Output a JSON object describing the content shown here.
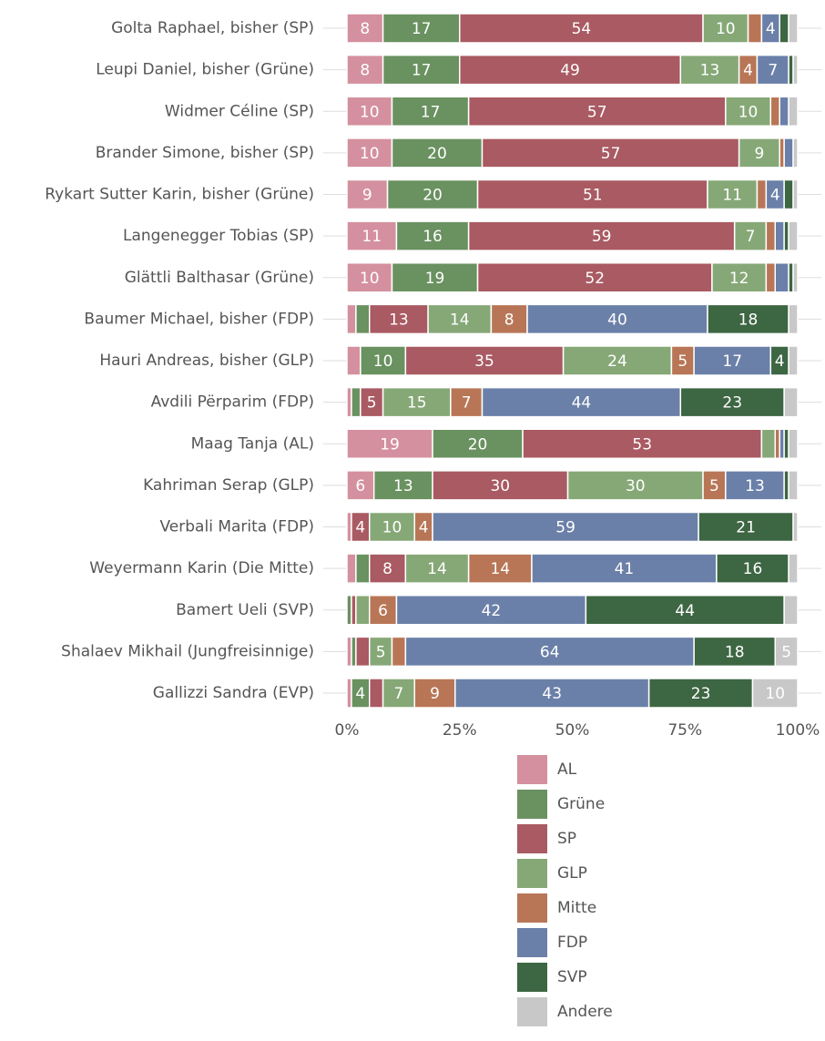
{
  "chart_data": {
    "type": "stacked-bar",
    "categories": [
      "Golta Raphael, bisher (SP)",
      "Leupi Daniel, bisher (Grüne)",
      "Widmer Céline (SP)",
      "Brander Simone, bisher (SP)",
      "Rykart Sutter Karin, bisher (Grüne)",
      "Langenegger Tobias (SP)",
      "Glättli Balthasar (Grüne)",
      "Baumer Michael, bisher (FDP)",
      "Hauri Andreas, bisher (GLP)",
      "Avdili Përparim (FDP)",
      "Maag Tanja (AL)",
      "Kahriman Serap (GLP)",
      "Verbali Marita (FDP)",
      "Weyermann Karin (Die Mitte)",
      "Bamert Ueli (SVP)",
      "Shalaev Mikhail (Jungfreisinnige)",
      "Gallizzi Sandra (EVP)"
    ],
    "series": [
      {
        "name": "AL",
        "color": "#d4909e",
        "values": [
          8,
          8,
          10,
          10,
          9,
          11,
          10,
          2,
          3,
          1,
          19,
          6,
          1,
          2,
          0,
          1,
          1
        ]
      },
      {
        "name": "Grüne",
        "color": "#6a9160",
        "values": [
          17,
          17,
          17,
          20,
          20,
          16,
          19,
          3,
          10,
          2,
          20,
          13,
          0,
          3,
          1,
          1,
          4
        ]
      },
      {
        "name": "SP",
        "color": "#a95a62",
        "values": [
          54,
          49,
          57,
          57,
          51,
          59,
          52,
          13,
          35,
          5,
          53,
          30,
          4,
          8,
          1,
          3,
          3
        ]
      },
      {
        "name": "GLP",
        "color": "#86a877",
        "values": [
          10,
          13,
          10,
          9,
          11,
          7,
          12,
          14,
          24,
          15,
          3,
          30,
          10,
          14,
          3,
          5,
          7
        ]
      },
      {
        "name": "Mitte",
        "color": "#b87656",
        "values": [
          3,
          4,
          2,
          1,
          2,
          2,
          2,
          8,
          5,
          7,
          1,
          5,
          4,
          14,
          6,
          3,
          9
        ]
      },
      {
        "name": "FDP",
        "color": "#6b80a8",
        "values": [
          4,
          7,
          2,
          2,
          4,
          2,
          3,
          40,
          17,
          44,
          1,
          13,
          59,
          41,
          42,
          64,
          43
        ]
      },
      {
        "name": "SVP",
        "color": "#3d6643",
        "values": [
          2,
          1,
          0,
          0,
          2,
          1,
          1,
          18,
          4,
          23,
          1,
          1,
          21,
          16,
          44,
          18,
          23
        ]
      },
      {
        "name": "Andere",
        "color": "#c8c8c8",
        "values": [
          2,
          1,
          2,
          1,
          1,
          2,
          1,
          2,
          2,
          3,
          2,
          2,
          1,
          2,
          3,
          5,
          10
        ]
      }
    ],
    "xlim": [
      0,
      100
    ],
    "xticks": [
      {
        "value": 0,
        "label": "0%"
      },
      {
        "value": 25,
        "label": "25%"
      },
      {
        "value": 50,
        "label": "50%"
      },
      {
        "value": 75,
        "label": "75%"
      },
      {
        "value": 100,
        "label": "100%"
      }
    ]
  }
}
